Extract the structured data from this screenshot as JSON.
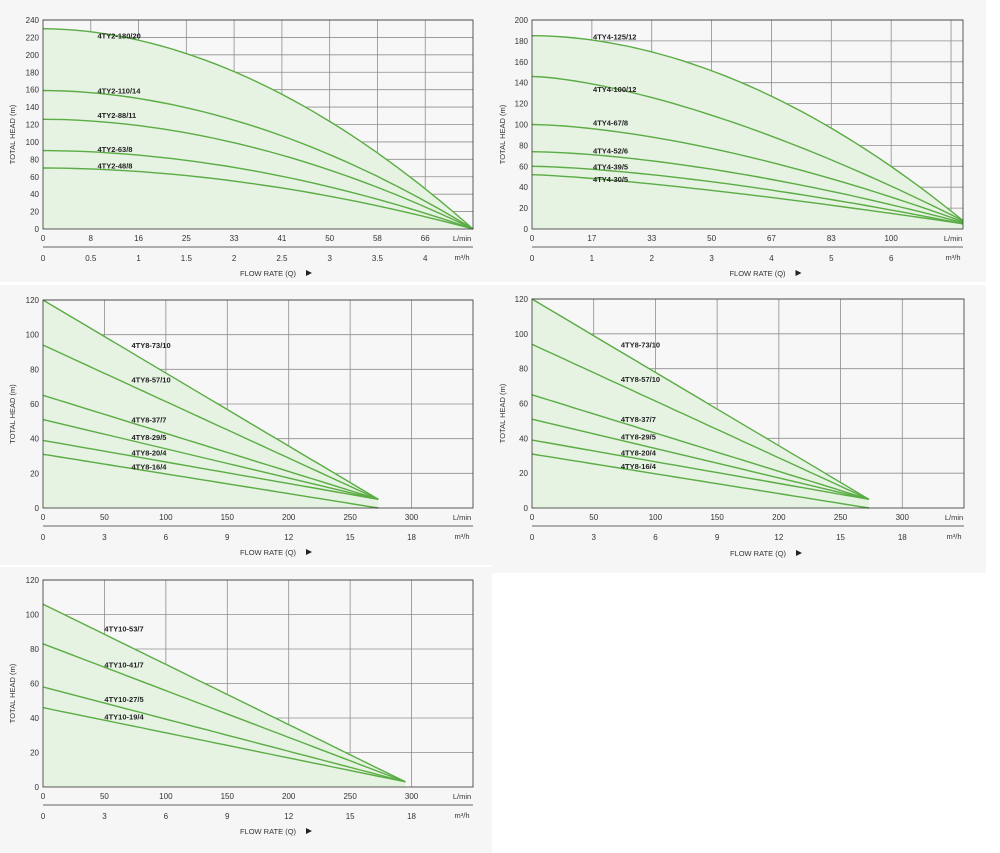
{
  "colors": {
    "curve": "#5aac44",
    "fill": "#e6f2e2",
    "grid": "#8e8e8e",
    "axis": "#333333",
    "text": "#333333",
    "panel_bg": "#f6f6f6"
  },
  "chart_data": [
    {
      "type": "line",
      "ylabel": "TOTAL HEAD (m)",
      "xlabel": "FLOW RATE (Q)",
      "x_unit": "L/min",
      "x2_unit": "m³/h",
      "xlim": [
        0,
        75
      ],
      "ylim": [
        0,
        240
      ],
      "x_ticks": [
        {
          "v": 0,
          "label": "0"
        },
        {
          "v": 8.33,
          "label": "8"
        },
        {
          "v": 16.67,
          "label": "16"
        },
        {
          "v": 25,
          "label": "25"
        },
        {
          "v": 33.33,
          "label": "33"
        },
        {
          "v": 41.67,
          "label": "41"
        },
        {
          "v": 50,
          "label": "50"
        },
        {
          "v": 58.33,
          "label": "58"
        },
        {
          "v": 66.67,
          "label": "66"
        }
      ],
      "x2_ticks": [
        {
          "v": 0,
          "label": "0"
        },
        {
          "v": 8.33,
          "label": "0.5"
        },
        {
          "v": 16.67,
          "label": "1"
        },
        {
          "v": 25,
          "label": "1.5"
        },
        {
          "v": 33.33,
          "label": "2"
        },
        {
          "v": 41.67,
          "label": "2.5"
        },
        {
          "v": 50,
          "label": "3"
        },
        {
          "v": 58.33,
          "label": "3.5"
        },
        {
          "v": 66.67,
          "label": "4"
        }
      ],
      "y_ticks": [
        "0",
        "20",
        "40",
        "60",
        "80",
        "100",
        "120",
        "140",
        "160",
        "180",
        "200",
        "220",
        "240"
      ],
      "y_step": 20,
      "series": [
        {
          "name": "4TY2-180/20",
          "x": [
            0,
            75
          ],
          "y": [
            230,
            0
          ],
          "shape": 1.9,
          "label_at": [
            9.5,
            222
          ]
        },
        {
          "name": "4TY2-110/14",
          "x": [
            0,
            75
          ],
          "y": [
            159,
            0
          ],
          "shape": 1.9,
          "label_at": [
            9.5,
            159
          ]
        },
        {
          "name": "4TY2-88/11",
          "x": [
            0,
            75
          ],
          "y": [
            126,
            0
          ],
          "shape": 1.9,
          "label_at": [
            9.5,
            131
          ]
        },
        {
          "name": "4TY2-63/8",
          "x": [
            0,
            75
          ],
          "y": [
            90,
            0
          ],
          "shape": 1.9,
          "label_at": [
            9.5,
            92
          ]
        },
        {
          "name": "4TY2-48/8",
          "x": [
            0,
            75
          ],
          "y": [
            70,
            0
          ],
          "shape": 1.9,
          "label_at": [
            9.5,
            73
          ]
        }
      ]
    },
    {
      "type": "line",
      "ylabel": "TOTAL HEAD (m)",
      "xlabel": "FLOW RATE (Q)",
      "x_unit": "L/min",
      "x2_unit": "m³/h",
      "xlim": [
        0,
        120
      ],
      "ylim": [
        0,
        200
      ],
      "x_ticks": [
        {
          "v": 0,
          "label": "0"
        },
        {
          "v": 16.67,
          "label": "17"
        },
        {
          "v": 33.33,
          "label": "33"
        },
        {
          "v": 50,
          "label": "50"
        },
        {
          "v": 66.67,
          "label": "67"
        },
        {
          "v": 83.33,
          "label": "83"
        },
        {
          "v": 100,
          "label": "100"
        }
      ],
      "x2_ticks": [
        {
          "v": 0,
          "label": "0"
        },
        {
          "v": 16.67,
          "label": "1"
        },
        {
          "v": 33.33,
          "label": "2"
        },
        {
          "v": 50,
          "label": "3"
        },
        {
          "v": 66.67,
          "label": "4"
        },
        {
          "v": 83.33,
          "label": "5"
        },
        {
          "v": 100,
          "label": "6"
        }
      ],
      "y_ticks": [
        "0",
        "20",
        "40",
        "60",
        "80",
        "100",
        "120",
        "140",
        "160",
        "180",
        "200"
      ],
      "y_step": 20,
      "series": [
        {
          "name": "4TY4-125/12",
          "x": [
            0,
            120
          ],
          "y": [
            185,
            8
          ],
          "shape": 1.9,
          "label_at": [
            17,
            184
          ]
        },
        {
          "name": "4TY4-100/12",
          "x": [
            0,
            120
          ],
          "y": [
            146,
            8
          ],
          "shape": 1.5,
          "label_at": [
            17,
            134
          ]
        },
        {
          "name": "4TY4-67/8",
          "x": [
            0,
            120
          ],
          "y": [
            100,
            7
          ],
          "shape": 1.6,
          "label_at": [
            17,
            102
          ]
        },
        {
          "name": "4TY4-52/6",
          "x": [
            0,
            120
          ],
          "y": [
            74,
            6
          ],
          "shape": 1.6,
          "label_at": [
            17,
            75
          ]
        },
        {
          "name": "4TY4-39/5",
          "x": [
            0,
            120
          ],
          "y": [
            60,
            5
          ],
          "shape": 1.5,
          "label_at": [
            17,
            60
          ]
        },
        {
          "name": "4TY4-30/5",
          "x": [
            0,
            120
          ],
          "y": [
            52,
            5
          ],
          "shape": 1.3,
          "label_at": [
            17,
            48
          ]
        }
      ]
    },
    {
      "type": "line",
      "ylabel": "TOTAL HEAD (m)",
      "xlabel": "FLOW RATE (Q)",
      "x_unit": "L/min",
      "x2_unit": "m³/h",
      "xlim": [
        0,
        350
      ],
      "ylim": [
        0,
        120
      ],
      "x_ticks": [
        {
          "v": 0,
          "label": "0"
        },
        {
          "v": 50,
          "label": "50"
        },
        {
          "v": 100,
          "label": "100"
        },
        {
          "v": 150,
          "label": "150"
        },
        {
          "v": 200,
          "label": "200"
        },
        {
          "v": 250,
          "label": "250"
        },
        {
          "v": 300,
          "label": "300"
        }
      ],
      "x2_ticks": [
        {
          "v": 0,
          "label": "0"
        },
        {
          "v": 50,
          "label": "3"
        },
        {
          "v": 100,
          "label": "6"
        },
        {
          "v": 150,
          "label": "9"
        },
        {
          "v": 200,
          "label": "12"
        },
        {
          "v": 250,
          "label": "15"
        },
        {
          "v": 300,
          "label": "18"
        }
      ],
      "y_ticks": [
        "0",
        "20",
        "40",
        "60",
        "80",
        "100",
        "120"
      ],
      "y_step": 20,
      "series": [
        {
          "name": "4TY8-73/10",
          "x": [
            0,
            273
          ],
          "y": [
            120,
            5
          ],
          "shape": 1.0,
          "label_at": [
            72,
            94
          ]
        },
        {
          "name": "4TY8-57/10",
          "x": [
            0,
            273
          ],
          "y": [
            94,
            5
          ],
          "shape": 1.0,
          "label_at": [
            72,
            74
          ]
        },
        {
          "name": "4TY8-37/7",
          "x": [
            0,
            273
          ],
          "y": [
            65,
            5
          ],
          "shape": 1.0,
          "label_at": [
            72,
            51
          ]
        },
        {
          "name": "4TY8-29/5",
          "x": [
            0,
            273
          ],
          "y": [
            51,
            5
          ],
          "shape": 1.0,
          "label_at": [
            72,
            41
          ]
        },
        {
          "name": "4TY8-20/4",
          "x": [
            0,
            273
          ],
          "y": [
            39,
            5
          ],
          "shape": 1.0,
          "label_at": [
            72,
            32
          ]
        },
        {
          "name": "4TY8-16/4",
          "x": [
            0,
            273
          ],
          "y": [
            31,
            0
          ],
          "shape": 1.0,
          "label_at": [
            72,
            24
          ]
        }
      ]
    },
    {
      "type": "line",
      "ylabel": "TOTAL HEAD (m)",
      "xlabel": "FLOW RATE (Q)",
      "x_unit": "L/min",
      "x2_unit": "m³/h",
      "xlim": [
        0,
        350
      ],
      "ylim": [
        0,
        120
      ],
      "x_ticks": [
        {
          "v": 0,
          "label": "0"
        },
        {
          "v": 50,
          "label": "50"
        },
        {
          "v": 100,
          "label": "100"
        },
        {
          "v": 150,
          "label": "150"
        },
        {
          "v": 200,
          "label": "200"
        },
        {
          "v": 250,
          "label": "250"
        },
        {
          "v": 300,
          "label": "300"
        }
      ],
      "x2_ticks": [
        {
          "v": 0,
          "label": "0"
        },
        {
          "v": 50,
          "label": "3"
        },
        {
          "v": 100,
          "label": "6"
        },
        {
          "v": 150,
          "label": "9"
        },
        {
          "v": 200,
          "label": "12"
        },
        {
          "v": 250,
          "label": "15"
        },
        {
          "v": 300,
          "label": "18"
        }
      ],
      "y_ticks": [
        "0",
        "20",
        "40",
        "60",
        "80",
        "100",
        "120"
      ],
      "y_step": 20,
      "series": [
        {
          "name": "4TY8-73/10",
          "x": [
            0,
            273
          ],
          "y": [
            120,
            5
          ],
          "shape": 1.0,
          "label_at": [
            72,
            94
          ]
        },
        {
          "name": "4TY8-57/10",
          "x": [
            0,
            273
          ],
          "y": [
            94,
            5
          ],
          "shape": 1.0,
          "label_at": [
            72,
            74
          ]
        },
        {
          "name": "4TY8-37/7",
          "x": [
            0,
            273
          ],
          "y": [
            65,
            5
          ],
          "shape": 1.0,
          "label_at": [
            72,
            51
          ]
        },
        {
          "name": "4TY8-29/5",
          "x": [
            0,
            273
          ],
          "y": [
            51,
            5
          ],
          "shape": 1.0,
          "label_at": [
            72,
            41
          ]
        },
        {
          "name": "4TY8-20/4",
          "x": [
            0,
            273
          ],
          "y": [
            39,
            5
          ],
          "shape": 1.0,
          "label_at": [
            72,
            32
          ]
        },
        {
          "name": "4TY8-16/4",
          "x": [
            0,
            273
          ],
          "y": [
            31,
            0
          ],
          "shape": 1.0,
          "label_at": [
            72,
            24
          ]
        }
      ]
    },
    {
      "type": "line",
      "ylabel": "TOTAL HEAD (m)",
      "xlabel": "FLOW RATE (Q)",
      "x_unit": "L/min",
      "x2_unit": "m³/h",
      "xlim": [
        0,
        350
      ],
      "ylim": [
        0,
        120
      ],
      "x_ticks": [
        {
          "v": 0,
          "label": "0"
        },
        {
          "v": 50,
          "label": "50"
        },
        {
          "v": 100,
          "label": "100"
        },
        {
          "v": 150,
          "label": "150"
        },
        {
          "v": 200,
          "label": "200"
        },
        {
          "v": 250,
          "label": "250"
        },
        {
          "v": 300,
          "label": "300"
        }
      ],
      "x2_ticks": [
        {
          "v": 0,
          "label": "0"
        },
        {
          "v": 50,
          "label": "3"
        },
        {
          "v": 100,
          "label": "6"
        },
        {
          "v": 150,
          "label": "9"
        },
        {
          "v": 200,
          "label": "12"
        },
        {
          "v": 250,
          "label": "15"
        },
        {
          "v": 300,
          "label": "18"
        }
      ],
      "y_ticks": [
        "0",
        "20",
        "40",
        "60",
        "80",
        "100",
        "120"
      ],
      "y_step": 20,
      "series": [
        {
          "name": "4TY10-53/7",
          "x": [
            0,
            295
          ],
          "y": [
            106,
            3
          ],
          "shape": 1.0,
          "label_at": [
            50,
            92
          ]
        },
        {
          "name": "4TY10-41/7",
          "x": [
            0,
            295
          ],
          "y": [
            83,
            3
          ],
          "shape": 1.0,
          "label_at": [
            50,
            71
          ]
        },
        {
          "name": "4TY10-27/5",
          "x": [
            0,
            295
          ],
          "y": [
            58,
            3
          ],
          "shape": 1.0,
          "label_at": [
            50,
            51
          ]
        },
        {
          "name": "4TY10-19/4",
          "x": [
            0,
            295
          ],
          "y": [
            46,
            3
          ],
          "shape": 1.0,
          "label_at": [
            50,
            41
          ]
        }
      ]
    }
  ]
}
